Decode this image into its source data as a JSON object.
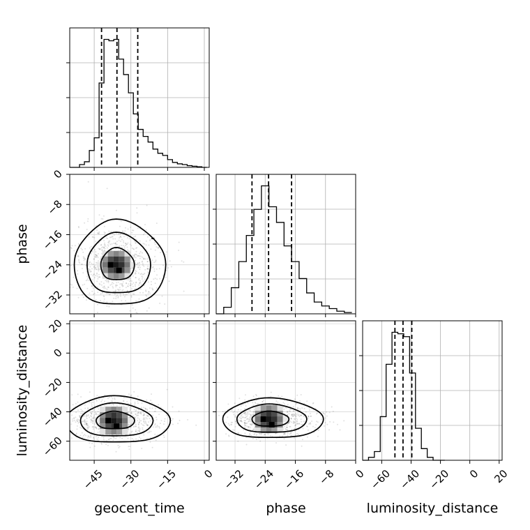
{
  "chart_data": {
    "type": "corner",
    "parameters": [
      "geocent_time",
      "phase",
      "luminosity_distance"
    ],
    "axes": {
      "geocent_time": {
        "range": [
          -55,
          2
        ],
        "ticks": [
          -45,
          -30,
          -15,
          0
        ],
        "tick_labels": [
          "−45",
          "−30",
          "−15",
          "0"
        ]
      },
      "phase": {
        "range": [
          -37,
          0
        ],
        "ticks": [
          -32,
          -24,
          -16,
          -8,
          0
        ],
        "tick_labels": [
          "−32",
          "−24",
          "−16",
          "−8",
          "0"
        ]
      },
      "luminosity_distance": {
        "range": [
          -73,
          22
        ],
        "ticks": [
          -60,
          -40,
          -20,
          0,
          20
        ],
        "tick_labels": [
          "−60",
          "−40",
          "−20",
          "0",
          "20"
        ]
      }
    },
    "grid": true,
    "histograms": {
      "geocent_time": {
        "bins": [
          -55,
          -53,
          -51,
          -49,
          -47,
          -45,
          -43,
          -41,
          -39,
          -37,
          -35,
          -33,
          -31,
          -29,
          -27,
          -25,
          -23,
          -21,
          -19,
          -17,
          -15,
          -13,
          -11,
          -9,
          -7,
          -5,
          -3,
          -1,
          1
        ],
        "counts": [
          0,
          0,
          0.02,
          0.04,
          0.12,
          0.21,
          0.6,
          0.91,
          0.9,
          0.91,
          0.77,
          0.66,
          0.53,
          0.38,
          0.27,
          0.22,
          0.18,
          0.13,
          0.1,
          0.085,
          0.055,
          0.035,
          0.025,
          0.02,
          0.012,
          0.008,
          0.004,
          0
        ],
        "quantiles": [
          -42,
          -35.7,
          -27.2
        ]
      },
      "phase": {
        "bins": [
          -37,
          -35,
          -33,
          -31,
          -29,
          -27,
          -25,
          -23,
          -21,
          -19,
          -17,
          -15,
          -13,
          -11,
          -9,
          -7,
          -5,
          -3,
          -1
        ],
        "counts": [
          0,
          0.05,
          0.2,
          0.4,
          0.6,
          0.8,
          0.98,
          0.82,
          0.7,
          0.52,
          0.4,
          0.27,
          0.16,
          0.09,
          0.06,
          0.04,
          0.02,
          0.01
        ],
        "quantiles": [
          -27.5,
          -23.1,
          -17
        ]
      },
      "luminosity_distance": {
        "bins": [
          -73,
          -69,
          -65,
          -61,
          -57,
          -53,
          -49,
          -45,
          -41,
          -37,
          -33,
          -29,
          -25,
          -21,
          -17
        ],
        "counts": [
          0,
          0.02,
          0.06,
          0.3,
          0.66,
          0.88,
          0.87,
          0.85,
          0.6,
          0.22,
          0.08,
          0.02,
          0,
          0
        ],
        "quantiles": [
          -51,
          -45.5,
          -39.5
        ]
      }
    },
    "joint": [
      {
        "x": "geocent_time",
        "y": "phase",
        "center": [
          -36,
          -24
        ],
        "spread": [
          7,
          5
        ],
        "outlier": [
          -21,
          -17
        ]
      },
      {
        "x": "geocent_time",
        "y": "luminosity_distance",
        "center": [
          -37,
          -46
        ],
        "spread": [
          8,
          7
        ]
      },
      {
        "x": "phase",
        "y": "luminosity_distance",
        "center": [
          -23,
          -45
        ],
        "spread": [
          5,
          6
        ]
      }
    ]
  }
}
